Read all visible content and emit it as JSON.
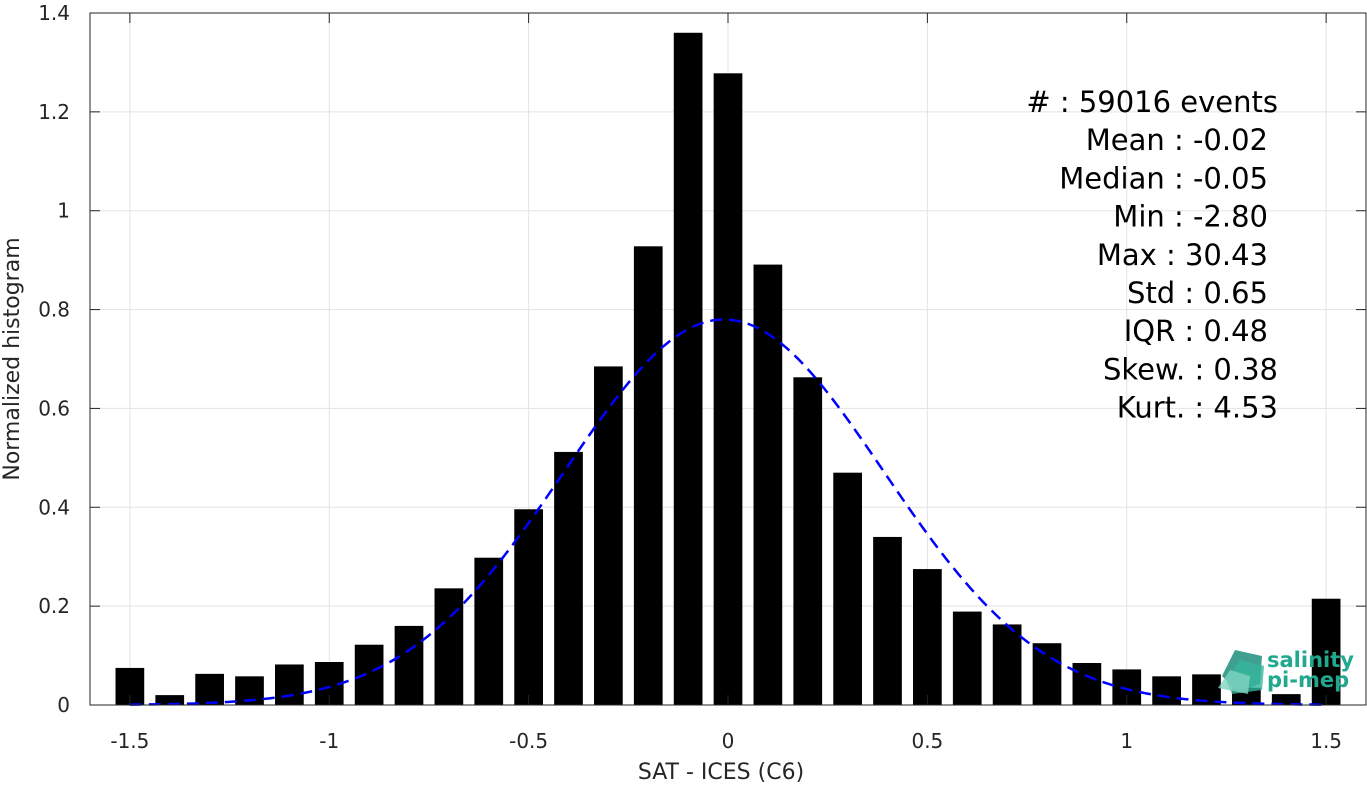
{
  "chart_data": {
    "type": "bar",
    "xlabel": "SAT - ICES (C6)",
    "ylabel": "Normalized histogram",
    "xlim": [
      -1.6,
      1.6
    ],
    "ylim": [
      0,
      1.4
    ],
    "xticks": [
      -1.5,
      -1,
      -0.5,
      0,
      0.5,
      1,
      1.5
    ],
    "xtick_labels": [
      "-1.5",
      "-1",
      "-0.5",
      "0",
      "0.5",
      "1",
      "1.5"
    ],
    "yticks": [
      0,
      0.2,
      0.4,
      0.6,
      0.8,
      1,
      1.2,
      1.4
    ],
    "ytick_labels": [
      "0",
      "0.2",
      "0.4",
      "0.6",
      "0.8",
      "1",
      "1.2",
      "1.4"
    ],
    "grid": true,
    "bar_color": "#000000",
    "bars": {
      "x": [
        -1.5,
        -1.4,
        -1.3,
        -1.2,
        -1.1,
        -1.0,
        -0.9,
        -0.8,
        -0.7,
        -0.6,
        -0.5,
        -0.4,
        -0.3,
        -0.2,
        -0.1,
        0.0,
        0.1,
        0.2,
        0.3,
        0.4,
        0.5,
        0.6,
        0.7,
        0.8,
        0.9,
        1.0,
        1.1,
        1.2,
        1.3,
        1.4,
        1.5
      ],
      "values": [
        0.075,
        0.02,
        0.063,
        0.058,
        0.082,
        0.087,
        0.122,
        0.16,
        0.236,
        0.298,
        0.396,
        0.512,
        0.685,
        0.928,
        1.36,
        1.278,
        0.891,
        0.663,
        0.47,
        0.34,
        0.275,
        0.189,
        0.163,
        0.125,
        0.085,
        0.072,
        0.058,
        0.062,
        0.035,
        0.022,
        0.215
      ]
    },
    "fit_curve": {
      "type": "gaussian",
      "style": "dashed",
      "color": "#0000ff",
      "mean": -0.01,
      "peak": 0.78,
      "sigma": 0.4,
      "x_range": [
        -1.5,
        1.5
      ]
    },
    "stats": [
      {
        "label": "#  :",
        "value": "59016 events"
      },
      {
        "label": "Mean :",
        "value": "-0.02"
      },
      {
        "label": "Median :",
        "value": "-0.05"
      },
      {
        "label": "Min :",
        "value": "-2.80"
      },
      {
        "label": "Max :",
        "value": "30.43"
      },
      {
        "label": "Std :",
        "value": "0.65"
      },
      {
        "label": "IQR :",
        "value": "0.48"
      },
      {
        "label": "Skew. :",
        "value": "0.38"
      },
      {
        "label": "Kurt. :",
        "value": "4.53"
      }
    ]
  },
  "logo": {
    "line1": "salinity",
    "line2": "pi-mep",
    "color": "#22a88e"
  }
}
